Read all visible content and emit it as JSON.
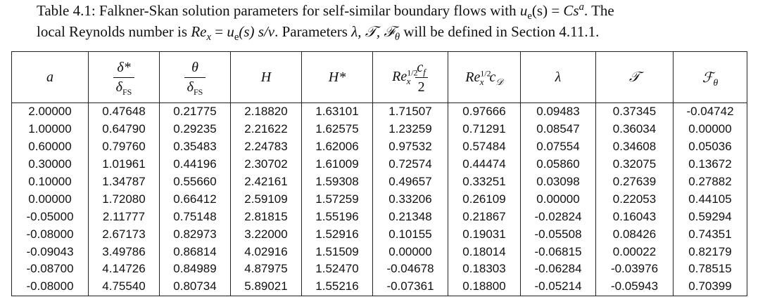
{
  "caption": {
    "line1_prefix": "Table 4.1: Falkner-Skan solution parameters for self-similar boundary flows with ",
    "line1_math": "u",
    "line1_sub": "e",
    "line1_mid": "(s)",
    "line1_eq": " = ",
    "line1_rhs": "Cs",
    "line1_exp": "a",
    "line1_suffix": ". The",
    "line2_prefix": "local Reynolds number is ",
    "line2_re": "Re",
    "line2_re_sub": "x",
    "line2_eq": " = ",
    "line2_rhs": "u",
    "line2_rhs_sub": "e",
    "line2_rhs_tail": "(s) s/ν",
    "line2_mid": ". Parameters ",
    "line2_params": "λ, 𝒯, ℱ",
    "line2_params_sub": "θ",
    "line2_suffix": " will be defined in Section 4.11.1."
  },
  "table": {
    "headers": {
      "a": "a",
      "delta_num": "δ*",
      "delta_den": "δ",
      "delta_den_sub": "FS",
      "theta_num": "θ",
      "theta_den": "δ",
      "theta_den_sub": "FS",
      "H": "H",
      "Hstar": "H*",
      "recf_re": "Re",
      "recf_sup": "1/2",
      "recf_sub": "x",
      "recf_num": "c",
      "recf_num_sub": "f",
      "recf_den": "2",
      "recd_re": "Re",
      "recd_sup": "1/2",
      "recd_sub": "x",
      "recd_c": "c",
      "recd_c_sub": "𝒟",
      "lambda": "λ",
      "T": "𝒯",
      "F": "ℱ",
      "F_sub": "θ"
    },
    "rows": [
      [
        "2.00000",
        "0.47648",
        "0.21775",
        "2.18820",
        "1.63101",
        "1.71507",
        "0.97666",
        "0.09483",
        "0.37345",
        "-0.04742"
      ],
      [
        "1.00000",
        "0.64790",
        "0.29235",
        "2.21622",
        "1.62575",
        "1.23259",
        "0.71291",
        "0.08547",
        "0.36034",
        "0.00000"
      ],
      [
        "0.60000",
        "0.79760",
        "0.35483",
        "2.24783",
        "1.62006",
        "0.97532",
        "0.57484",
        "0.07554",
        "0.34608",
        "0.05036"
      ],
      [
        "0.30000",
        "1.01961",
        "0.44196",
        "2.30702",
        "1.61009",
        "0.72574",
        "0.44474",
        "0.05860",
        "0.32075",
        "0.13672"
      ],
      [
        "0.10000",
        "1.34787",
        "0.55660",
        "2.42161",
        "1.59308",
        "0.49657",
        "0.33251",
        "0.03098",
        "0.27639",
        "0.27882"
      ],
      [
        "0.00000",
        "1.72080",
        "0.66412",
        "2.59109",
        "1.57259",
        "0.33206",
        "0.26109",
        "0.00000",
        "0.22053",
        "0.44105"
      ],
      [
        "-0.05000",
        "2.11777",
        "0.75148",
        "2.81815",
        "1.55196",
        "0.21348",
        "0.21867",
        "-0.02824",
        "0.16043",
        "0.59294"
      ],
      [
        "-0.08000",
        "2.67173",
        "0.82973",
        "3.22000",
        "1.52916",
        "0.10155",
        "0.19031",
        "-0.05508",
        "0.08426",
        "0.74351"
      ],
      [
        "-0.09043",
        "3.49786",
        "0.86814",
        "4.02916",
        "1.51509",
        "0.00000",
        "0.18014",
        "-0.06815",
        "0.00022",
        "0.82179"
      ],
      [
        "-0.08700",
        "4.14726",
        "0.84989",
        "4.87975",
        "1.52470",
        "-0.04678",
        "0.18303",
        "-0.06284",
        "-0.03976",
        "0.78515"
      ],
      [
        "-0.08000",
        "4.75540",
        "0.80734",
        "5.89021",
        "1.55216",
        "-0.07361",
        "0.18800",
        "-0.05214",
        "-0.05943",
        "0.70399"
      ]
    ]
  }
}
